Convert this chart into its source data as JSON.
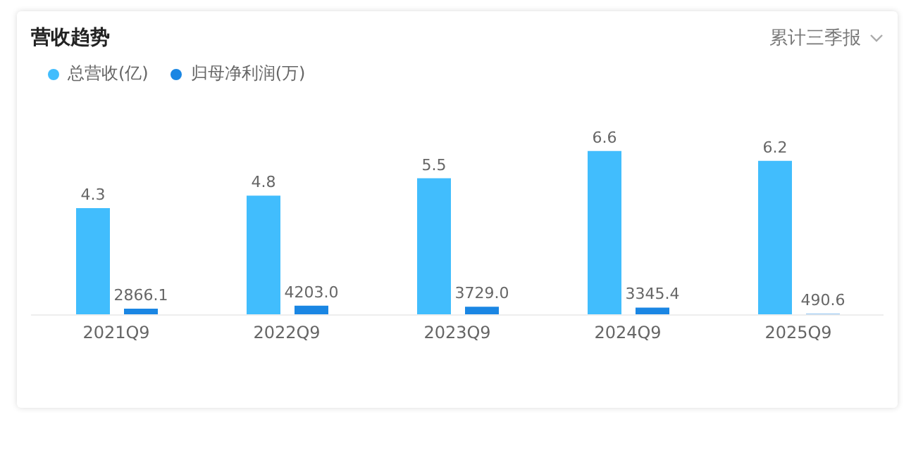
{
  "chart_data": {
    "type": "bar",
    "title": "营收趋势",
    "annotations": [
      "累计三季报"
    ],
    "categories": [
      "2021Q9",
      "2022Q9",
      "2023Q9",
      "2024Q9",
      "2025Q9"
    ],
    "series": [
      {
        "name": "总营收(亿)",
        "color": "#41bdfd",
        "values": [
          4.3,
          4.8,
          5.5,
          6.6,
          6.2
        ],
        "value_labels": [
          "4.3",
          "4.8",
          "5.5",
          "6.6",
          "6.2"
        ]
      },
      {
        "name": "归母净利润(万)",
        "color": "#1a86e3",
        "axis": "y2",
        "values": [
          2866.1,
          4203.0,
          3729.0,
          3345.4,
          490.6
        ],
        "value_labels": [
          "2866.1",
          "4203.0",
          "3729.0",
          "3345.4",
          "490.6"
        ]
      }
    ],
    "tick_labels": "x",
    "legend": "top left"
  }
}
